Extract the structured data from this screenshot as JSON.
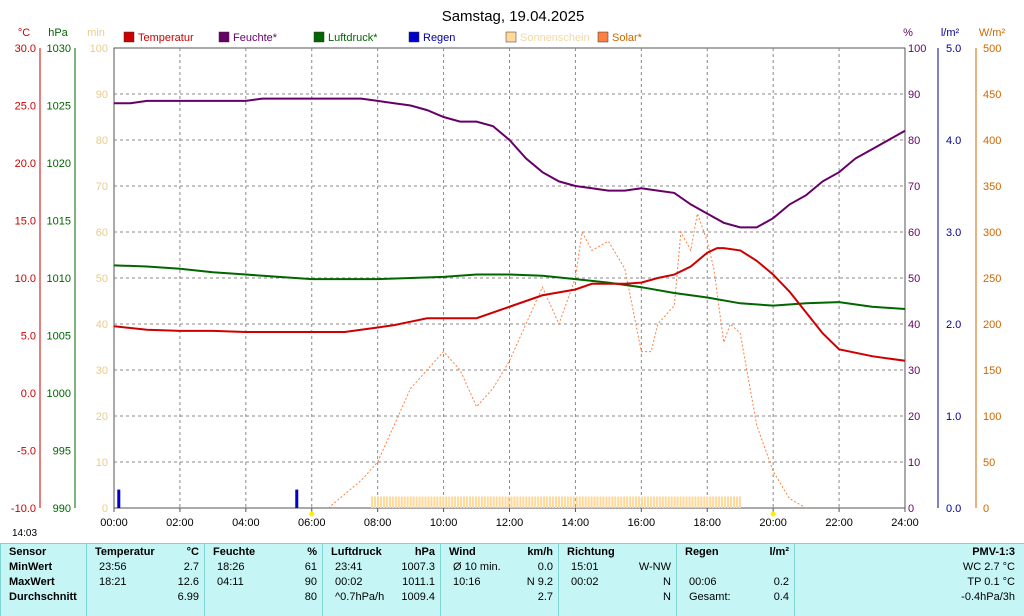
{
  "title": "Samstag, 19.04.2025",
  "axes": {
    "temp": {
      "unit": "°C",
      "color": "#cc0000",
      "ticks": [
        "30.0",
        "25.0",
        "20.0",
        "15.0",
        "10.0",
        "5.0",
        "0.0",
        "-5.0",
        "-10.0"
      ]
    },
    "press": {
      "unit": "hPa",
      "color": "#006600",
      "ticks": [
        "1030",
        "1025",
        "1020",
        "1015",
        "1010",
        "1005",
        "1000",
        "995",
        "990"
      ]
    },
    "min": {
      "unit": "min",
      "color": "#e8cc8c",
      "ticks": [
        "100",
        "90",
        "80",
        "70",
        "60",
        "50",
        "40",
        "30",
        "20",
        "10",
        "0"
      ]
    },
    "humid": {
      "unit": "%",
      "color": "#660066",
      "ticks": [
        "100",
        "90",
        "80",
        "70",
        "60",
        "50",
        "40",
        "30",
        "20",
        "10",
        "0"
      ]
    },
    "rain": {
      "unit": "l/m²",
      "color": "#000099",
      "ticks": [
        "5.0",
        "4.0",
        "3.0",
        "2.0",
        "1.0",
        "0.0"
      ]
    },
    "solar": {
      "unit": "W/m²",
      "color": "#cc6600",
      "ticks": [
        "500",
        "450",
        "400",
        "350",
        "300",
        "250",
        "200",
        "150",
        "100",
        "50",
        "0"
      ]
    },
    "x_ticks": [
      "00:00",
      "02:00",
      "04:00",
      "06:00",
      "08:00",
      "10:00",
      "12:00",
      "14:00",
      "16:00",
      "18:00",
      "20:00",
      "22:00",
      "24:00"
    ]
  },
  "legend": [
    {
      "label": "Temperatur",
      "color": "#cc0000",
      "text_color": "#cc0000"
    },
    {
      "label": "Feuchte*",
      "color": "#660066",
      "text_color": "#660066"
    },
    {
      "label": "Luftdruck*",
      "color": "#006600",
      "text_color": "#006600"
    },
    {
      "label": "Regen",
      "color": "#0000cc",
      "text_color": "#000099"
    },
    {
      "label": "Sonnenschein",
      "color": "#ffd89a",
      "text_color": "#f0d8a8"
    },
    {
      "label": "Solar*",
      "color": "#ff8040",
      "text_color": "#cc6600"
    }
  ],
  "day_length": "14:03",
  "chart_data": {
    "type": "line",
    "title": "Samstag, 19.04.2025",
    "x_range": [
      "00:00",
      "24:00"
    ],
    "series": [
      {
        "name": "Temperatur",
        "unit": "°C",
        "x": [
          0,
          1,
          2,
          3,
          4,
          5,
          6,
          7,
          7.5,
          8,
          8.5,
          9,
          9.5,
          10,
          11,
          12,
          13,
          14,
          14.5,
          15,
          15.5,
          16,
          16.5,
          17,
          17.5,
          18,
          18.3,
          18.5,
          19,
          19.5,
          20,
          20.5,
          21,
          21.5,
          22,
          23,
          24
        ],
        "y": [
          5.8,
          5.5,
          5.4,
          5.4,
          5.3,
          5.3,
          5.3,
          5.3,
          5.5,
          5.7,
          5.9,
          6.2,
          6.5,
          6.5,
          6.5,
          7.5,
          8.5,
          9.0,
          9.5,
          9.5,
          9.5,
          9.6,
          10.0,
          10.3,
          11.0,
          12.2,
          12.6,
          12.6,
          12.4,
          11.5,
          10.3,
          8.8,
          7.0,
          5.2,
          3.8,
          3.2,
          2.8
        ]
      },
      {
        "name": "Feuchte*",
        "unit": "%",
        "x": [
          0,
          0.5,
          1,
          2,
          3,
          4,
          4.5,
          5,
          6,
          7,
          7.5,
          8,
          8.5,
          9,
          9.5,
          10,
          10.5,
          11,
          11.5,
          12,
          12.5,
          13,
          13.5,
          14,
          14.5,
          15,
          15.5,
          16,
          16.5,
          17,
          17.5,
          18,
          18.5,
          19,
          19.5,
          20,
          20.5,
          21,
          21.5,
          22,
          22.5,
          23,
          24
        ],
        "y": [
          88,
          88,
          88.5,
          88.5,
          88.5,
          88.5,
          89,
          89,
          89,
          89,
          89,
          88.5,
          88,
          87.5,
          86.5,
          85,
          84,
          84,
          83,
          80,
          76,
          73,
          71,
          70,
          69.5,
          69,
          69,
          69.5,
          69,
          68.5,
          66,
          64,
          62,
          61,
          61,
          63,
          66,
          68,
          71,
          73,
          76,
          78,
          82
        ]
      },
      {
        "name": "Luftdruck*",
        "unit": "hPa",
        "x": [
          0,
          1,
          2,
          3,
          4,
          5,
          6,
          7,
          8,
          9,
          10,
          11,
          12,
          13,
          14,
          15,
          16,
          17,
          18,
          19,
          20,
          21,
          22,
          23,
          24
        ],
        "y": [
          1011.1,
          1011.0,
          1010.8,
          1010.5,
          1010.3,
          1010.1,
          1009.9,
          1009.9,
          1009.9,
          1010.0,
          1010.1,
          1010.3,
          1010.3,
          1010.2,
          1009.9,
          1009.6,
          1009.2,
          1008.7,
          1008.3,
          1007.8,
          1007.6,
          1007.8,
          1007.9,
          1007.5,
          1007.3
        ]
      },
      {
        "name": "Regen",
        "unit": "l/m²",
        "x": [
          0.1,
          5.5
        ],
        "y": [
          0.2,
          0.2
        ]
      },
      {
        "name": "Sonnenschein",
        "unit": "min",
        "x": [
          7.8,
          19.0
        ],
        "y": [
          2.5,
          2.5
        ]
      },
      {
        "name": "Solar*",
        "unit": "W/m²",
        "x": [
          6.5,
          7,
          7.5,
          8,
          8.5,
          9,
          9.5,
          10,
          10.5,
          11,
          11.5,
          12,
          12.5,
          13,
          13.5,
          14,
          14.2,
          14.5,
          15,
          15.5,
          16,
          16.3,
          16.5,
          17,
          17.2,
          17.5,
          17.7,
          18,
          18.2,
          18.5,
          18.7,
          19,
          19.5,
          20,
          20.5,
          21
        ],
        "y": [
          0,
          15,
          30,
          50,
          90,
          130,
          150,
          170,
          150,
          110,
          130,
          160,
          200,
          240,
          200,
          250,
          300,
          280,
          290,
          260,
          170,
          170,
          200,
          220,
          300,
          280,
          320,
          290,
          260,
          180,
          200,
          190,
          90,
          40,
          10,
          0
        ]
      }
    ]
  },
  "stats": {
    "sensor": {
      "header": "Sensor",
      "rows": [
        "MinWert",
        "MaxWert",
        "Durchschnitt"
      ]
    },
    "temp": {
      "header": "Temperatur",
      "unit": "°C",
      "rows": [
        [
          "23:56",
          "2.7"
        ],
        [
          "18:21",
          "12.6"
        ],
        [
          "",
          "6.99"
        ]
      ]
    },
    "humid": {
      "header": "Feuchte",
      "unit": "%",
      "rows": [
        [
          "18:26",
          "61"
        ],
        [
          "04:11",
          "90"
        ],
        [
          "",
          "80"
        ]
      ]
    },
    "press": {
      "header": "Luftdruck",
      "unit": "hPa",
      "rows": [
        [
          "23:41",
          "1007.3"
        ],
        [
          "00:02",
          "1011.1"
        ],
        [
          "^0.7hPa/h",
          "1009.4"
        ]
      ]
    },
    "wind": {
      "header": "Wind",
      "unit": "km/h",
      "rows": [
        [
          "Ø 10 min.",
          "0.0"
        ],
        [
          "10:16",
          "N 9.2"
        ],
        [
          "",
          "2.7"
        ]
      ]
    },
    "dir": {
      "header": "Richtung",
      "rows": [
        [
          "15:01",
          "W-NW"
        ],
        [
          "00:02",
          "N"
        ],
        [
          "",
          "N"
        ]
      ]
    },
    "rain": {
      "header": "Regen",
      "unit": "l/m²",
      "rows": [
        [
          "",
          ""
        ],
        [
          "00:06",
          "0.2"
        ],
        [
          "Gesamt:",
          "0.4"
        ]
      ]
    },
    "pmv": {
      "header": "PMV-1:3",
      "rows": [
        "WC 2.7 °C",
        "TP 0.1 °C",
        "-0.4hPa/3h"
      ]
    }
  }
}
